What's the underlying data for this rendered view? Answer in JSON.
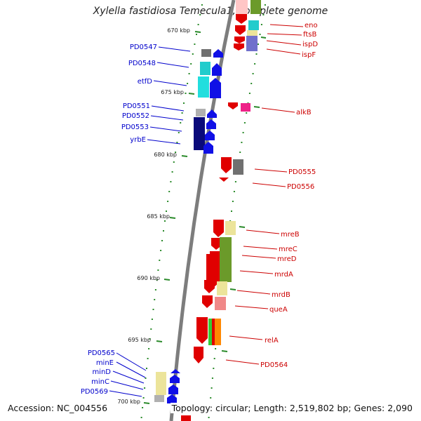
{
  "title": "Xylella fastidiosa Temecula1, complete genome",
  "accession": "Accession: NC_004556",
  "summary": "Topology: circular; Length: 2,519,802 bp; Genes: 2,090",
  "colors": {
    "backbone": "#808080",
    "tick": "#2a8a2a",
    "forward_label": "#0000cc",
    "reverse_label": "#cc0000"
  },
  "ticks": [
    {
      "label": "670 kbp"
    },
    {
      "label": "675 kbp"
    },
    {
      "label": "680 kbp"
    },
    {
      "label": "685 kbp"
    },
    {
      "label": "690 kbp"
    },
    {
      "label": "695 kbp"
    },
    {
      "label": "700 kbp"
    }
  ],
  "forward_genes": [
    {
      "label": "PD0547"
    },
    {
      "label": "PD0548"
    },
    {
      "label": "etfD"
    },
    {
      "label": "PD0551"
    },
    {
      "label": "PD0552"
    },
    {
      "label": "PD0553"
    },
    {
      "label": "yrbE"
    },
    {
      "label": "PD0565"
    },
    {
      "label": "minE"
    },
    {
      "label": "minD"
    },
    {
      "label": "minC"
    },
    {
      "label": "PD0569"
    }
  ],
  "reverse_genes": [
    {
      "label": "eno"
    },
    {
      "label": "ftsB"
    },
    {
      "label": "ispD"
    },
    {
      "label": "ispF"
    },
    {
      "label": "alkB"
    },
    {
      "label": "PD0555"
    },
    {
      "label": "PD0556"
    },
    {
      "label": "mreB"
    },
    {
      "label": "mreC"
    },
    {
      "label": "mreD"
    },
    {
      "label": "mrdA"
    },
    {
      "label": "mrdB"
    },
    {
      "label": "queA"
    },
    {
      "label": "relA"
    },
    {
      "label": "PD0564"
    }
  ]
}
